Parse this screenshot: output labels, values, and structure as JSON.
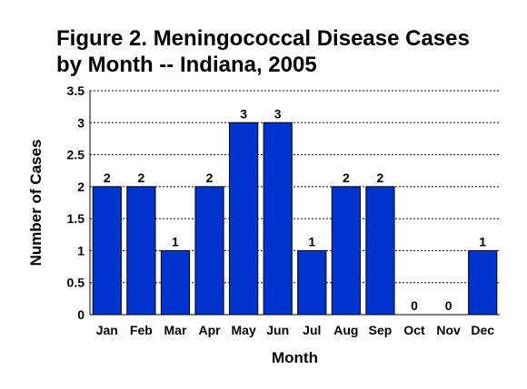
{
  "chart_data": {
    "type": "bar",
    "title_lines": [
      "Figure 2. Meningococcal Disease Cases",
      "by Month -- Indiana, 2005"
    ],
    "xlabel": "Month",
    "ylabel": "Number of Cases",
    "categories": [
      "Jan",
      "Feb",
      "Mar",
      "Apr",
      "May",
      "Jun",
      "Jul",
      "Aug",
      "Sep",
      "Oct",
      "Nov",
      "Dec"
    ],
    "values": [
      2,
      2,
      1,
      2,
      3,
      3,
      1,
      2,
      2,
      0,
      0,
      1
    ],
    "data_labels": [
      "2",
      "2",
      "1",
      "2",
      "3",
      "3",
      "1",
      "2",
      "2",
      "0",
      "0",
      "1"
    ],
    "ylim": [
      0,
      3.5
    ],
    "y_ticks": [
      0,
      0.5,
      1,
      1.5,
      2,
      2.5,
      3,
      3.5
    ],
    "y_tick_labels": [
      "0",
      "0.5",
      "1",
      "1.5",
      "2",
      "2.5",
      "3",
      "3.5"
    ],
    "grid": "horizontal dotted",
    "legend": "none",
    "bar_color": "#0033CC",
    "bar_edge_color": "#000000",
    "grid_color": "#000000"
  }
}
